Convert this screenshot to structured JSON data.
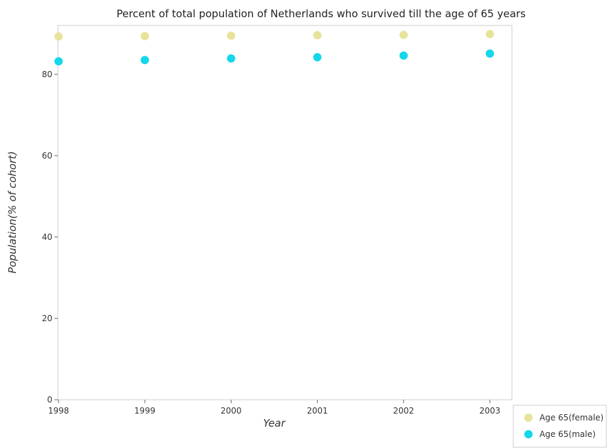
{
  "chart_data": {
    "type": "scatter",
    "title": "Percent of total population of Netherlands who survived till the age of 65 years",
    "xlabel": "Year",
    "ylabel": "Population(% of cohort)",
    "categories": [
      "1998",
      "1999",
      "2000",
      "2001",
      "2002",
      "2003"
    ],
    "ylim": [
      0,
      92
    ],
    "yticks": [
      0,
      20,
      40,
      60,
      80
    ],
    "grid": false,
    "legend_position": "bottom-right",
    "series": [
      {
        "name": "Age 65(female)",
        "color": "#e8e39b",
        "values": [
          89.3,
          89.4,
          89.5,
          89.6,
          89.7,
          89.9
        ]
      },
      {
        "name": "Age 65(male)",
        "color": "#14d7eb",
        "values": [
          83.2,
          83.5,
          83.9,
          84.2,
          84.6,
          85.1
        ]
      }
    ]
  }
}
